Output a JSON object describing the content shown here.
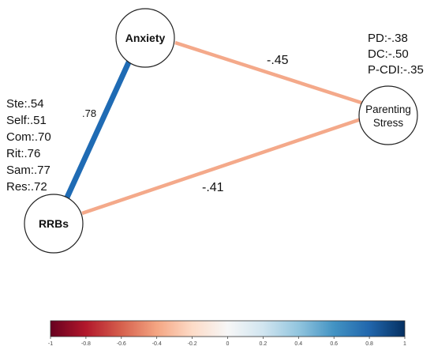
{
  "nodes": {
    "anxiety": "Anxiety",
    "parenting_line1": "Parenting",
    "parenting_line2": "Stress",
    "rrbs": "RRBs"
  },
  "edges": [
    {
      "from": "Anxiety",
      "to": "RRBs",
      "weight": 0.78,
      "label": ".78",
      "color": "#1f6bb4"
    },
    {
      "from": "Anxiety",
      "to": "Parenting Stress",
      "weight": -0.45,
      "label": "-.45",
      "color": "#f4a98a"
    },
    {
      "from": "RRBs",
      "to": "Parenting Stress",
      "weight": -0.41,
      "label": "-.41",
      "color": "#f4a98a"
    }
  ],
  "parenting_loadings": [
    "PD:-.38",
    "DC:-.50",
    "P-CDI:-.35"
  ],
  "rrbs_loadings": [
    "Ste:.54",
    "Self:.51",
    "Com:.70",
    "Rit:.76",
    "Sam:.77",
    "Res:.72"
  ],
  "colorbar": {
    "min": -1,
    "max": 1,
    "ticks": [
      "-1",
      "-0.8",
      "-0.6",
      "-0.4",
      "-0.2",
      "0",
      "0.2",
      "0.4",
      "0.6",
      "0.8",
      "1"
    ],
    "colors": {
      "negative_end": "#67001f",
      "negative_mid": "#d6604d",
      "neutral": "#f7f7f7",
      "positive_mid": "#4393c3",
      "positive_end": "#053061"
    }
  }
}
